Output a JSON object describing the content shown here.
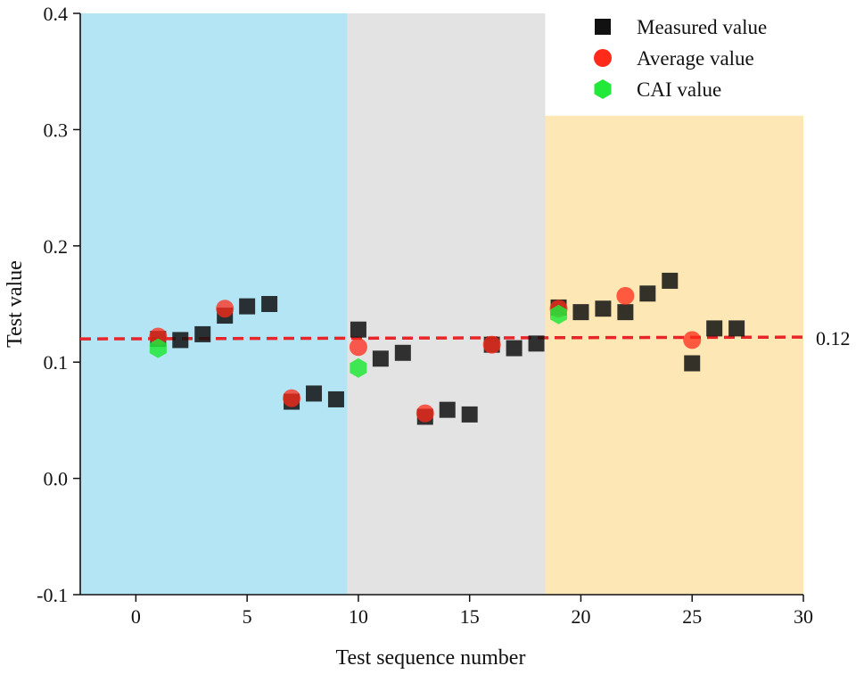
{
  "chart_data": {
    "type": "scatter",
    "xlabel": "Test sequence number",
    "ylabel": "Test value",
    "xlim": [
      -2.5,
      30
    ],
    "ylim": [
      -0.1,
      0.4
    ],
    "x_ticks": [
      0,
      5,
      10,
      15,
      20,
      25,
      30
    ],
    "x_tick_labels": [
      "0",
      "5",
      "10",
      "15",
      "20",
      "25",
      "30"
    ],
    "y_ticks": [
      -0.1,
      0.0,
      0.1,
      0.2,
      0.3,
      0.4
    ],
    "y_tick_labels": [
      "-0.1",
      "0.0",
      "0.1",
      "0.2",
      "0.3",
      "0.4"
    ],
    "regions": [
      {
        "x_start": -2.5,
        "x_end": 9.5,
        "y_top": 0.4,
        "color": "#b3e5f5"
      },
      {
        "x_start": 9.5,
        "x_end": 18.4,
        "y_top": 0.4,
        "color": "#e3e3e3"
      },
      {
        "x_start": 18.4,
        "x_end": 30,
        "y_top": 0.312,
        "color": "#fde8b5"
      }
    ],
    "reference_line": {
      "value": 0.12,
      "label": "0.12",
      "color": "#e8262a"
    },
    "series": [
      {
        "name": "Measured value",
        "marker": "square",
        "color": "#111111",
        "x": [
          1,
          2,
          3,
          4,
          5,
          6,
          7,
          8,
          9,
          10,
          11,
          12,
          13,
          14,
          15,
          16,
          17,
          18,
          19,
          20,
          21,
          22,
          23,
          24,
          25,
          26,
          27
        ],
        "y": [
          0.12,
          0.119,
          0.124,
          0.14,
          0.148,
          0.15,
          0.066,
          0.073,
          0.068,
          0.128,
          0.103,
          0.108,
          0.053,
          0.059,
          0.055,
          0.115,
          0.112,
          0.116,
          0.147,
          0.143,
          0.146,
          0.143,
          0.159,
          0.17,
          0.099,
          0.129,
          0.129
        ]
      },
      {
        "name": "Average value",
        "marker": "circle",
        "color": "#ff2a1a",
        "x": [
          1,
          4,
          7,
          10,
          13,
          16,
          19,
          22,
          25
        ],
        "y": [
          0.122,
          0.146,
          0.069,
          0.113,
          0.056,
          0.115,
          0.146,
          0.157,
          0.119
        ]
      },
      {
        "name": "CAI value",
        "marker": "hexagon",
        "color": "#22e83a",
        "x": [
          1,
          10,
          19
        ],
        "y": [
          0.112,
          0.095,
          0.141
        ]
      }
    ],
    "legend_position": "top-right"
  }
}
